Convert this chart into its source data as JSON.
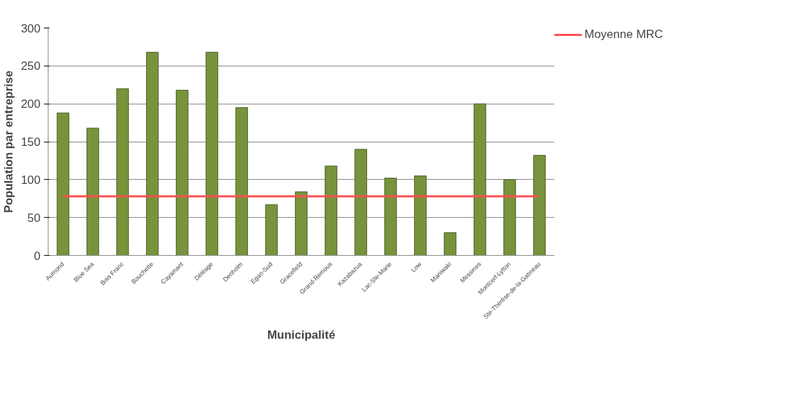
{
  "chart_data": {
    "type": "bar",
    "xlabel": "Municipalité",
    "ylabel": "Population par entreprise",
    "categories": [
      "Aumond",
      "Blue Sea",
      "Bois Franc",
      "Bouchette",
      "Cayamant",
      "Déléage",
      "Denholm",
      "Egan-Sud",
      "Gracefield",
      "Grand-Remous",
      "Kazabazua",
      "Lac-Ste-Marie",
      "Low",
      "Maniwaki",
      "Messines",
      "Montcerf-Lytton",
      "Ste-Thérèse-de-la-Gatineau"
    ],
    "series": [
      {
        "color": "#77933c",
        "values": [
          188,
          168,
          220,
          268,
          218,
          268,
          195,
          67,
          84,
          118,
          140,
          102,
          105,
          30,
          200,
          100,
          132
        ]
      },
      {
        "type": "line",
        "name": "Moyenne MRC",
        "color": "#ff4f4f",
        "values": [
          78,
          78,
          78,
          78,
          78,
          78,
          78,
          78,
          78,
          78,
          78,
          78,
          78,
          78,
          78,
          78,
          78
        ]
      }
    ],
    "ylim": [
      0,
      300
    ],
    "yticks": [
      0,
      50,
      100,
      150,
      200,
      250,
      300
    ],
    "grid": "y",
    "legend": "right"
  }
}
